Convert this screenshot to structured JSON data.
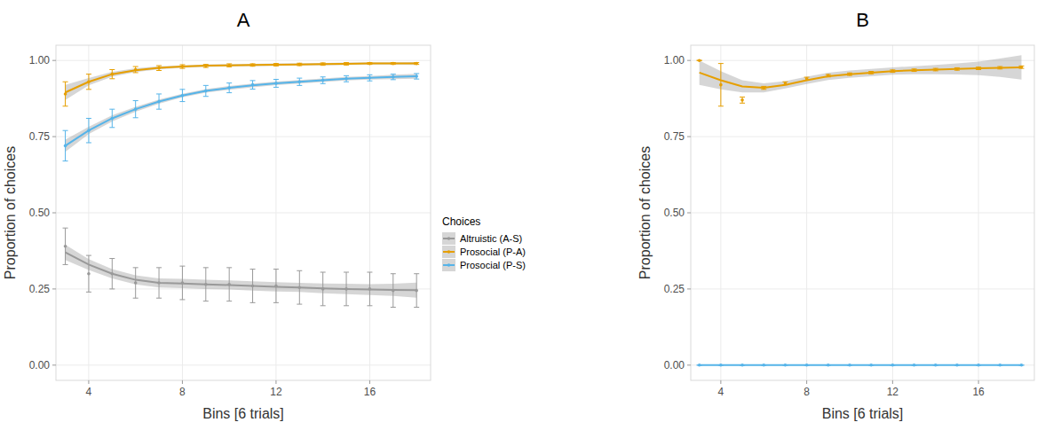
{
  "chart_data": [
    {
      "type": "line",
      "title": "A",
      "x_label": "Bins [6 trials]",
      "y_label": "Proportion of choices",
      "x": [
        3,
        4,
        5,
        6,
        7,
        8,
        9,
        10,
        11,
        12,
        13,
        14,
        15,
        16,
        17,
        18
      ],
      "xlim": [
        2.6,
        18.6
      ],
      "xticks": [
        4,
        8,
        12,
        16
      ],
      "ylim": [
        -0.05,
        1.05
      ],
      "yticks": [
        {
          "value": 0,
          "label": "0.00"
        },
        {
          "value": 0.25,
          "label": "0.25"
        },
        {
          "value": 0.5,
          "label": "0.50"
        },
        {
          "value": 0.75,
          "label": "0.75"
        },
        {
          "value": 1,
          "label": "1.00"
        }
      ],
      "grid": true,
      "legend": "right",
      "legend_title": "Choices",
      "series": [
        {
          "name": "Altruistic (A-S)",
          "color": "#999999",
          "values": [
            0.39,
            0.3,
            0.3,
            0.27,
            0.27,
            0.27,
            0.265,
            0.265,
            0.26,
            0.26,
            0.255,
            0.25,
            0.25,
            0.25,
            0.245,
            0.245
          ],
          "errors": [
            0.06,
            0.06,
            0.05,
            0.05,
            0.05,
            0.055,
            0.055,
            0.055,
            0.055,
            0.055,
            0.055,
            0.055,
            0.055,
            0.055,
            0.055,
            0.055
          ],
          "fit": [
            0.37,
            0.33,
            0.3,
            0.28,
            0.27,
            0.268,
            0.265,
            0.263,
            0.26,
            0.257,
            0.255,
            0.252,
            0.25,
            0.248,
            0.247,
            0.246
          ],
          "fit_se": [
            0.025,
            0.018,
            0.015,
            0.015,
            0.015,
            0.015,
            0.015,
            0.015,
            0.015,
            0.015,
            0.015,
            0.016,
            0.017,
            0.018,
            0.02,
            0.025
          ]
        },
        {
          "name": "Prosocial (P-A)",
          "color": "#E69F00",
          "values": [
            0.89,
            0.93,
            0.955,
            0.97,
            0.975,
            0.98,
            0.982,
            0.984,
            0.985,
            0.986,
            0.987,
            0.988,
            0.989,
            0.99,
            0.99,
            0.99
          ],
          "errors": [
            0.04,
            0.025,
            0.015,
            0.01,
            0.008,
            0.006,
            0.005,
            0.005,
            0.004,
            0.004,
            0.004,
            0.004,
            0.004,
            0.003,
            0.003,
            0.003
          ],
          "fit": [
            0.895,
            0.93,
            0.955,
            0.968,
            0.976,
            0.98,
            0.983,
            0.984,
            0.985,
            0.986,
            0.987,
            0.988,
            0.989,
            0.99,
            0.99,
            0.99
          ],
          "fit_se": [
            0.025,
            0.012,
            0.008,
            0.006,
            0.005,
            0.004,
            0.004,
            0.004,
            0.004,
            0.004,
            0.004,
            0.004,
            0.004,
            0.004,
            0.004,
            0.005
          ]
        },
        {
          "name": "Prosocial (P-S)",
          "color": "#56B4E9",
          "values": [
            0.72,
            0.77,
            0.81,
            0.84,
            0.865,
            0.885,
            0.9,
            0.91,
            0.92,
            0.925,
            0.93,
            0.935,
            0.94,
            0.943,
            0.946,
            0.948
          ],
          "errors": [
            0.05,
            0.04,
            0.03,
            0.028,
            0.025,
            0.02,
            0.018,
            0.016,
            0.014,
            0.013,
            0.012,
            0.011,
            0.01,
            0.01,
            0.009,
            0.009
          ],
          "fit": [
            0.72,
            0.77,
            0.81,
            0.84,
            0.865,
            0.885,
            0.9,
            0.91,
            0.918,
            0.925,
            0.93,
            0.935,
            0.94,
            0.943,
            0.946,
            0.948
          ],
          "fit_se": [
            0.02,
            0.012,
            0.01,
            0.008,
            0.007,
            0.006,
            0.006,
            0.006,
            0.006,
            0.006,
            0.006,
            0.006,
            0.006,
            0.006,
            0.007,
            0.008
          ]
        }
      ]
    },
    {
      "type": "line",
      "title": "B",
      "x_label": "Bins [6 trials]",
      "y_label": "Proportion of choices",
      "x": [
        3,
        4,
        5,
        6,
        7,
        8,
        9,
        10,
        11,
        12,
        13,
        14,
        15,
        16,
        17,
        18
      ],
      "xlim": [
        2.6,
        18.6
      ],
      "xticks": [
        4,
        8,
        12,
        16
      ],
      "ylim": [
        -0.05,
        1.05
      ],
      "yticks": [
        {
          "value": 0,
          "label": "0.00"
        },
        {
          "value": 0.25,
          "label": "0.25"
        },
        {
          "value": 0.5,
          "label": "0.50"
        },
        {
          "value": 0.75,
          "label": "0.75"
        },
        {
          "value": 1,
          "label": "1.00"
        }
      ],
      "grid": true,
      "series": [
        {
          "color": "#E69F00",
          "values": [
            1.0,
            0.92,
            0.87,
            0.91,
            0.925,
            0.94,
            0.95,
            0.955,
            0.96,
            0.965,
            0.968,
            0.97,
            0.972,
            0.974,
            0.976,
            0.978
          ],
          "errors": [
            0,
            0.07,
            0.01,
            0.005,
            0.005,
            0.005,
            0.004,
            0.004,
            0.004,
            0.004,
            0.004,
            0.004,
            0.004,
            0.004,
            0.004,
            0.004
          ],
          "fit": [
            0.96,
            0.935,
            0.915,
            0.91,
            0.92,
            0.935,
            0.948,
            0.955,
            0.96,
            0.965,
            0.968,
            0.97,
            0.972,
            0.974,
            0.976,
            0.977
          ],
          "fit_se": [
            0.04,
            0.03,
            0.02,
            0.015,
            0.012,
            0.012,
            0.012,
            0.012,
            0.012,
            0.012,
            0.013,
            0.015,
            0.018,
            0.022,
            0.03,
            0.04
          ]
        },
        {
          "color": "#56B4E9",
          "values": [
            0,
            0,
            0,
            0,
            0,
            0,
            0,
            0,
            0,
            0,
            0,
            0,
            0,
            0,
            0,
            0
          ],
          "errors": [
            0,
            0,
            0,
            0,
            0,
            0,
            0,
            0,
            0,
            0,
            0,
            0,
            0,
            0,
            0,
            0
          ],
          "fit": [
            0,
            0,
            0,
            0,
            0,
            0,
            0,
            0,
            0,
            0,
            0,
            0,
            0,
            0,
            0,
            0
          ],
          "fit_se": [
            0,
            0,
            0,
            0,
            0,
            0,
            0,
            0,
            0,
            0,
            0,
            0,
            0,
            0,
            0,
            0
          ]
        }
      ]
    }
  ]
}
